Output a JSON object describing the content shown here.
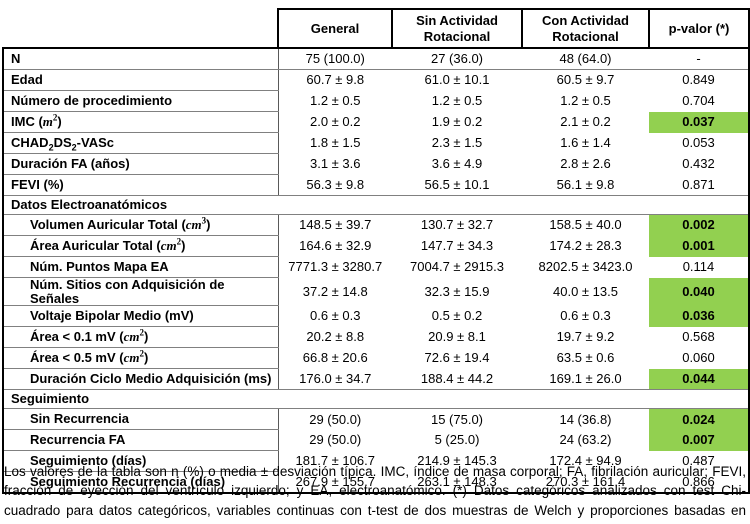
{
  "colors": {
    "highlight_green": "#92d050",
    "border_outer": "#000000",
    "border_inner": "#808080"
  },
  "table": {
    "header": {
      "label": "",
      "cols": [
        "General",
        "Sin Actividad Rotacional",
        "Con Actividad Rotacional",
        "p-valor (*)"
      ]
    },
    "rows": [
      {
        "type": "data",
        "label": "N",
        "indent": false,
        "values": [
          "75 (100.0)",
          "27 (36.0)",
          "48 (64.0)"
        ],
        "p": "-",
        "highlight": false,
        "rule_below": true
      },
      {
        "type": "data",
        "label": "Edad",
        "indent": false,
        "values": [
          "60.7 ± 9.8",
          "61.0 ± 10.1",
          "60.5 ± 9.7"
        ],
        "p": "0.849",
        "highlight": false,
        "rule_below": false
      },
      {
        "type": "data",
        "label": "Número de procedimiento",
        "indent": false,
        "values": [
          "1.2 ± 0.5",
          "1.2 ± 0.5",
          "1.2 ± 0.5"
        ],
        "p": "0.704",
        "highlight": false,
        "rule_below": false
      },
      {
        "type": "data",
        "label": "IMC (*m*^2^)",
        "indent": false,
        "values": [
          "2.0 ± 0.2",
          "1.9 ± 0.2",
          "2.1 ± 0.2"
        ],
        "p": "0.037",
        "highlight": true,
        "rule_below": false
      },
      {
        "type": "data",
        "label": "CHAD~2~DS~2~-VASc",
        "indent": false,
        "values": [
          "1.8 ± 1.5",
          "2.3 ± 1.5",
          "1.6 ± 1.4"
        ],
        "p": "0.053",
        "highlight": false,
        "rule_below": false
      },
      {
        "type": "data",
        "label": "Duración FA (años)",
        "indent": false,
        "values": [
          "3.1 ± 3.6",
          "3.6 ± 4.9",
          "2.8 ± 2.6"
        ],
        "p": "0.432",
        "highlight": false,
        "rule_below": false
      },
      {
        "type": "data",
        "label": "FEVI (%)",
        "indent": false,
        "values": [
          "56.3 ± 9.8",
          "56.5 ± 10.1",
          "56.1 ± 9.8"
        ],
        "p": "0.871",
        "highlight": false,
        "rule_below": true
      },
      {
        "type": "section",
        "label": "Datos Electroanatómicos"
      },
      {
        "type": "data",
        "label": "Volumen Auricular Total (*cm*^3^)",
        "indent": true,
        "values": [
          "148.5 ± 39.7",
          "130.7 ± 32.7",
          "158.5 ± 40.0"
        ],
        "p": "0.002",
        "highlight": true,
        "rule_below": false
      },
      {
        "type": "data",
        "label": "Área Auricular Total (*cm*^2^)",
        "indent": true,
        "values": [
          "164.6 ± 32.9",
          "147.7 ± 34.3",
          "174.2 ± 28.3"
        ],
        "p": "0.001",
        "highlight": true,
        "rule_below": false
      },
      {
        "type": "data",
        "label": "Núm. Puntos Mapa EA",
        "indent": true,
        "values": [
          "7771.3 ± 3280.7",
          "7004.7 ± 2915.3",
          "8202.5 ± 3423.0"
        ],
        "p": "0.114",
        "highlight": false,
        "rule_below": false
      },
      {
        "type": "data",
        "label": "Núm. Sitios con Adquisición de Señales",
        "indent": true,
        "values": [
          "37.2 ± 14.8",
          "32.3 ± 15.9",
          "40.0 ± 13.5"
        ],
        "p": "0.040",
        "highlight": true,
        "rule_below": false
      },
      {
        "type": "data",
        "label": "Voltaje Bipolar Medio (mV)",
        "indent": true,
        "values": [
          "0.6 ± 0.3",
          "0.5 ± 0.2",
          "0.6 ± 0.3"
        ],
        "p": "0.036",
        "highlight": true,
        "rule_below": false
      },
      {
        "type": "data",
        "label": "Área < 0.1 mV (*cm*^2^)",
        "indent": true,
        "values": [
          "20.2 ± 8.8",
          "20.9 ± 8.1",
          "19.7 ± 9.2"
        ],
        "p": "0.568",
        "highlight": false,
        "rule_below": false
      },
      {
        "type": "data",
        "label": "Área < 0.5 mV (*cm*^2^)",
        "indent": true,
        "values": [
          "66.8 ± 20.6",
          "72.6 ± 19.4",
          "63.5 ± 0.6"
        ],
        "p": "0.060",
        "highlight": false,
        "rule_below": false
      },
      {
        "type": "data",
        "label": "Duración Ciclo Medio Adquisición (ms)",
        "indent": true,
        "values": [
          "176.0 ± 34.7",
          "188.4 ± 44.2",
          "169.1 ± 26.0"
        ],
        "p": "0.044",
        "highlight": true,
        "rule_below": true
      },
      {
        "type": "section",
        "label": "Seguimiento"
      },
      {
        "type": "data",
        "label": "Sin Recurrencia",
        "indent": true,
        "values": [
          "29 (50.0)",
          "15 (75.0)",
          "14 (36.8)"
        ],
        "p": "0.024",
        "highlight": true,
        "rule_below": false
      },
      {
        "type": "data",
        "label": "Recurrencia FA",
        "indent": true,
        "values": [
          "29 (50.0)",
          "5 (25.0)",
          "24 (63.2)"
        ],
        "p": "0.007",
        "highlight": true,
        "rule_below": false
      },
      {
        "type": "data",
        "label": "Seguimiento (días)",
        "indent": true,
        "values": [
          "181.7 ± 106.7",
          "214.9 ± 145.3",
          "172.4 ± 94.9"
        ],
        "p": "0.487",
        "highlight": false,
        "rule_below": false
      },
      {
        "type": "data",
        "label": "Seguimiento Recurrencia (días)",
        "indent": true,
        "values": [
          "267.9 ± 155.7",
          "263.1 ± 148.3",
          "270.3 ± 161.4"
        ],
        "p": "0.866",
        "highlight": false,
        "rule_below": false
      }
    ]
  },
  "footnote": "Los valores de la tabla son n (%) o media ± desviación típica. IMC, índice de masa corporal; FA, fibrilación auricular; FEVI, fracción de eyección del ventrículo izquierdo; y EA, electroanatómico. (*) Datos categóricos analizados con test Chi-cuadrado para datos categóricos, variables continuas con t-test de dos muestras de Welch y proporciones basadas en prueba Z normal."
}
